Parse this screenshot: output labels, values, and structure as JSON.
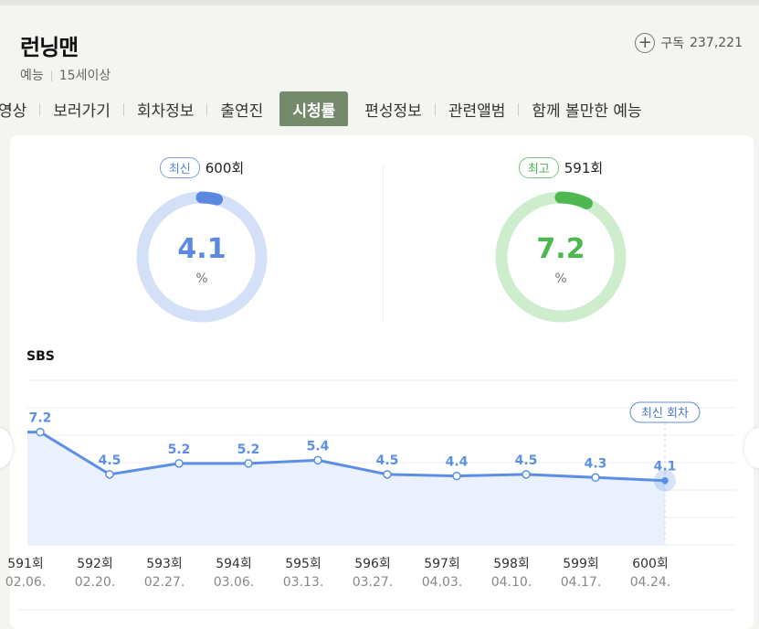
{
  "show": {
    "title": "런닝맨",
    "genre": "예능",
    "rating": "15세이상",
    "subscribe_label": "구독",
    "subscriber_count": "237,221"
  },
  "tabs": [
    {
      "label": "영상"
    },
    {
      "label": "보러가기"
    },
    {
      "label": "회차정보"
    },
    {
      "label": "출연진"
    },
    {
      "label": "시청률",
      "active": true
    },
    {
      "label": "편성정보"
    },
    {
      "label": "관련앨범"
    },
    {
      "label": "함께 볼만한 예능"
    }
  ],
  "latest": {
    "badge": "최신",
    "episode": "600회",
    "value": "4.1",
    "unit": "%",
    "ratio": 0.041,
    "color": "#5b88e0",
    "track_color": "#d3e0f8"
  },
  "best": {
    "badge": "최고",
    "episode": "591회",
    "value": "7.2",
    "unit": "%",
    "ratio": 0.072,
    "color": "#4cb84f",
    "track_color": "#cdedcc"
  },
  "channel": "SBS",
  "latest_marker": "최신 회차",
  "chart_data": {
    "type": "line",
    "title": "",
    "categories": [
      "591회",
      "592회",
      "593회",
      "594회",
      "595회",
      "596회",
      "597회",
      "598회",
      "599회",
      "600회"
    ],
    "dates": [
      "02.06.",
      "02.20.",
      "02.27.",
      "03.06.",
      "03.13.",
      "03.27.",
      "04.03.",
      "04.10.",
      "04.17.",
      "04.24."
    ],
    "series": [
      {
        "values": [
          7.2,
          4.5,
          5.2,
          5.2,
          5.4,
          4.5,
          4.4,
          4.5,
          4.3,
          4.1
        ]
      }
    ],
    "line_color": "#5b8fe6",
    "area_color": "#eaf1fd",
    "grid": true
  }
}
